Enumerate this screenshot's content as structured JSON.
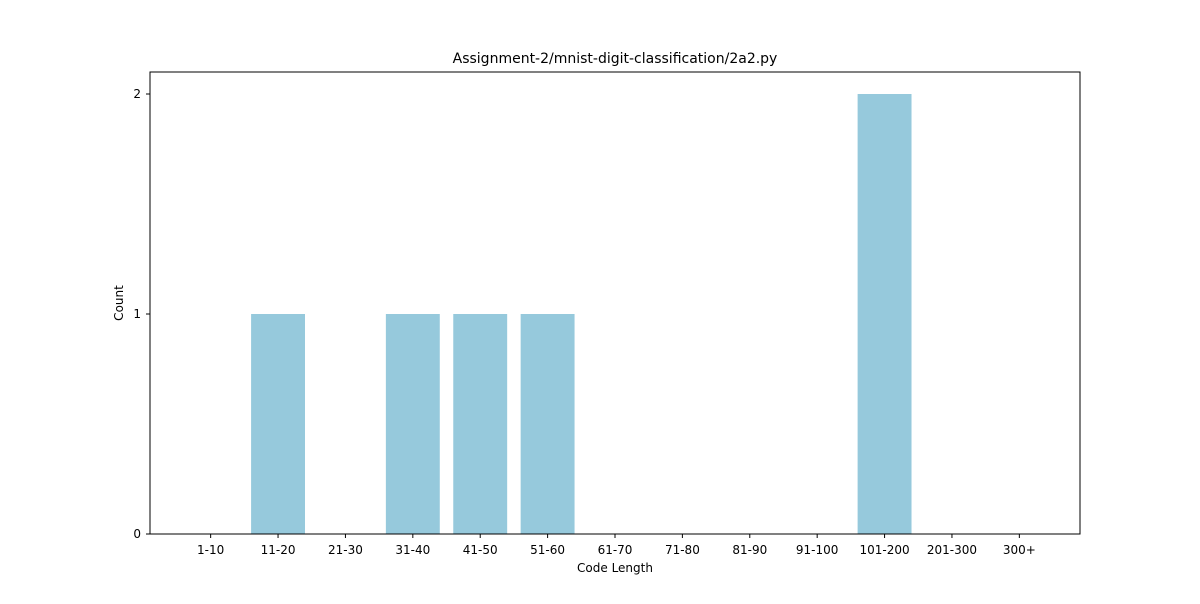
{
  "chart_data": {
    "type": "bar",
    "title": "Assignment-2/mnist-digit-classification/2a2.py",
    "xlabel": "Code Length",
    "ylabel": "Count",
    "categories": [
      "1-10",
      "11-20",
      "21-30",
      "31-40",
      "41-50",
      "51-60",
      "61-70",
      "71-80",
      "81-90",
      "91-100",
      "101-200",
      "201-300",
      "300+"
    ],
    "values": [
      0,
      1,
      0,
      1,
      1,
      1,
      0,
      0,
      0,
      0,
      2,
      0,
      0
    ],
    "yticks": [
      0,
      1,
      2
    ],
    "ylim": [
      0,
      2.1
    ],
    "grid": false,
    "bar_color": "#96c9dc"
  }
}
